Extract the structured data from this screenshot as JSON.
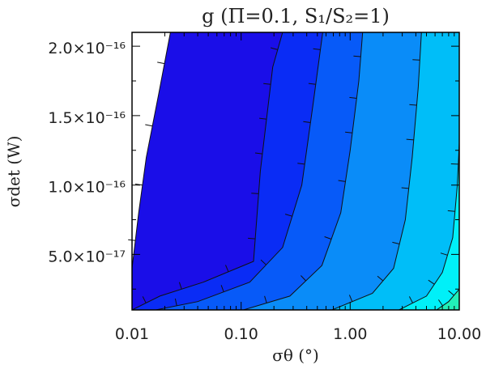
{
  "chart_data": {
    "type": "contour",
    "title": "g (Π=0.1, S₁/S₂=1)",
    "xlabel": "σθ (°)",
    "ylabel": "σdet (W)",
    "xscale": "log",
    "xlim": [
      0.01,
      10.0
    ],
    "ylim": [
      1e-17,
      2.1e-16
    ],
    "x_ticks": [
      "0.01",
      "0.10",
      "1.00",
      "10.00"
    ],
    "y_ticks": [
      "5.0×10⁻¹⁷",
      "1.0×10⁻¹⁶",
      "1.5×10⁻¹⁶",
      "2.0×10⁻¹⁶"
    ],
    "grid": false,
    "legend": "none",
    "contour_lines": [
      {
        "points": [
          [
            0.01,
            4e-17
          ],
          [
            0.0115,
            8e-17
          ],
          [
            0.0135,
            1.2e-16
          ],
          [
            0.0175,
            1.65e-16
          ],
          [
            0.0225,
            2.1e-16
          ]
        ]
      },
      {
        "points": [
          [
            0.01,
            1e-17
          ],
          [
            0.018,
            2e-17
          ],
          [
            0.045,
            3e-17
          ],
          [
            0.13,
            4.5e-17
          ],
          [
            0.15,
            1.1e-16
          ],
          [
            0.195,
            1.85e-16
          ],
          [
            0.24,
            2.1e-16
          ]
        ]
      },
      {
        "points": [
          [
            0.0165,
            1e-17
          ],
          [
            0.04,
            1.6e-17
          ],
          [
            0.12,
            3e-17
          ],
          [
            0.24,
            5.5e-17
          ],
          [
            0.36,
            1e-16
          ],
          [
            0.46,
            1.6e-16
          ],
          [
            0.56,
            2.1e-16
          ]
        ]
      },
      {
        "points": [
          [
            0.105,
            1e-17
          ],
          [
            0.28,
            2e-17
          ],
          [
            0.55,
            4.2e-17
          ],
          [
            0.82,
            8e-17
          ],
          [
            1.0,
            1.25e-16
          ],
          [
            1.2,
            1.75e-16
          ],
          [
            1.3,
            2.1e-16
          ]
        ]
      },
      {
        "points": [
          [
            0.68,
            1e-17
          ],
          [
            1.6,
            2.2e-17
          ],
          [
            2.5,
            4e-17
          ],
          [
            3.2,
            7.5e-17
          ],
          [
            3.7,
            1.2e-16
          ],
          [
            4.2,
            1.7e-16
          ],
          [
            4.5,
            2.1e-16
          ]
        ]
      },
      {
        "points": [
          [
            2.8,
            1e-17
          ],
          [
            5.0,
            2e-17
          ],
          [
            7.0,
            3.7e-17
          ],
          [
            8.7,
            6.2e-17
          ],
          [
            9.6,
            1e-16
          ],
          [
            10.0,
            1.3e-16
          ]
        ]
      },
      {
        "points": [
          [
            6.2,
            1e-17
          ],
          [
            8.0,
            1.6e-17
          ],
          [
            10.0,
            2.5e-17
          ]
        ]
      }
    ],
    "region_colors": [
      "#ffffff",
      "#1a0ee8",
      "#0a2cf5",
      "#075af8",
      "#0a8cf8",
      "#00bef8",
      "#00f0f8",
      "#22f0b8"
    ]
  }
}
